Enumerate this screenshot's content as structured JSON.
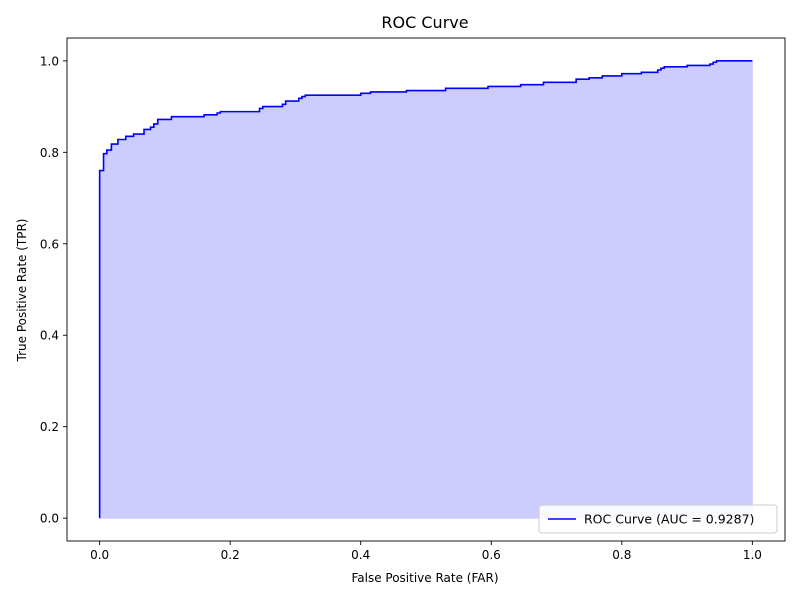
{
  "chart_data": {
    "type": "area",
    "title": "ROC Curve",
    "xlabel": "False Positive Rate (FAR)",
    "ylabel": "True Positive Rate (TPR)",
    "xlim": [
      -0.05,
      1.05
    ],
    "ylim": [
      -0.05,
      1.05
    ],
    "x_ticks": [
      {
        "value": 0.0,
        "label": "0.0"
      },
      {
        "value": 0.2,
        "label": "0.2"
      },
      {
        "value": 0.4,
        "label": "0.4"
      },
      {
        "value": 0.6,
        "label": "0.6"
      },
      {
        "value": 0.8,
        "label": "0.8"
      },
      {
        "value": 1.0,
        "label": "1.0"
      }
    ],
    "y_ticks": [
      {
        "value": 0.0,
        "label": "0.0"
      },
      {
        "value": 0.2,
        "label": "0.2"
      },
      {
        "value": 0.4,
        "label": "0.4"
      },
      {
        "value": 0.6,
        "label": "0.6"
      },
      {
        "value": 0.8,
        "label": "0.8"
      },
      {
        "value": 1.0,
        "label": "1.0"
      }
    ],
    "grid": false,
    "legend_position": "lower-right",
    "series": [
      {
        "name": "ROC Curve (AUC = 0.9287)",
        "color": "#0000ff",
        "fill_color": "#ccccff",
        "step": true,
        "points": [
          [
            0.0,
            0.0
          ],
          [
            0.0,
            0.76
          ],
          [
            0.006,
            0.76
          ],
          [
            0.006,
            0.797
          ],
          [
            0.011,
            0.797
          ],
          [
            0.011,
            0.805
          ],
          [
            0.018,
            0.805
          ],
          [
            0.018,
            0.818
          ],
          [
            0.028,
            0.818
          ],
          [
            0.028,
            0.828
          ],
          [
            0.04,
            0.828
          ],
          [
            0.04,
            0.835
          ],
          [
            0.052,
            0.835
          ],
          [
            0.052,
            0.84
          ],
          [
            0.068,
            0.84
          ],
          [
            0.068,
            0.85
          ],
          [
            0.078,
            0.85
          ],
          [
            0.078,
            0.855
          ],
          [
            0.083,
            0.855
          ],
          [
            0.083,
            0.862
          ],
          [
            0.089,
            0.862
          ],
          [
            0.089,
            0.872
          ],
          [
            0.11,
            0.872
          ],
          [
            0.11,
            0.878
          ],
          [
            0.16,
            0.878
          ],
          [
            0.16,
            0.882
          ],
          [
            0.18,
            0.882
          ],
          [
            0.18,
            0.886
          ],
          [
            0.185,
            0.886
          ],
          [
            0.185,
            0.889
          ],
          [
            0.245,
            0.889
          ],
          [
            0.245,
            0.896
          ],
          [
            0.25,
            0.896
          ],
          [
            0.25,
            0.9
          ],
          [
            0.28,
            0.9
          ],
          [
            0.28,
            0.905
          ],
          [
            0.285,
            0.905
          ],
          [
            0.285,
            0.912
          ],
          [
            0.305,
            0.912
          ],
          [
            0.305,
            0.918
          ],
          [
            0.31,
            0.918
          ],
          [
            0.31,
            0.922
          ],
          [
            0.315,
            0.922
          ],
          [
            0.315,
            0.925
          ],
          [
            0.4,
            0.925
          ],
          [
            0.4,
            0.929
          ],
          [
            0.415,
            0.929
          ],
          [
            0.415,
            0.932
          ],
          [
            0.47,
            0.932
          ],
          [
            0.47,
            0.935
          ],
          [
            0.53,
            0.935
          ],
          [
            0.53,
            0.94
          ],
          [
            0.595,
            0.94
          ],
          [
            0.595,
            0.944
          ],
          [
            0.645,
            0.944
          ],
          [
            0.645,
            0.948
          ],
          [
            0.68,
            0.948
          ],
          [
            0.68,
            0.953
          ],
          [
            0.73,
            0.953
          ],
          [
            0.73,
            0.96
          ],
          [
            0.75,
            0.96
          ],
          [
            0.75,
            0.963
          ],
          [
            0.77,
            0.963
          ],
          [
            0.77,
            0.967
          ],
          [
            0.8,
            0.967
          ],
          [
            0.8,
            0.972
          ],
          [
            0.83,
            0.972
          ],
          [
            0.83,
            0.975
          ],
          [
            0.855,
            0.975
          ],
          [
            0.855,
            0.98
          ],
          [
            0.86,
            0.98
          ],
          [
            0.86,
            0.984
          ],
          [
            0.865,
            0.984
          ],
          [
            0.865,
            0.987
          ],
          [
            0.9,
            0.987
          ],
          [
            0.9,
            0.99
          ],
          [
            0.935,
            0.99
          ],
          [
            0.935,
            0.993
          ],
          [
            0.94,
            0.993
          ],
          [
            0.94,
            0.997
          ],
          [
            0.945,
            0.997
          ],
          [
            0.945,
            1.0
          ],
          [
            1.0,
            1.0
          ]
        ]
      }
    ]
  }
}
